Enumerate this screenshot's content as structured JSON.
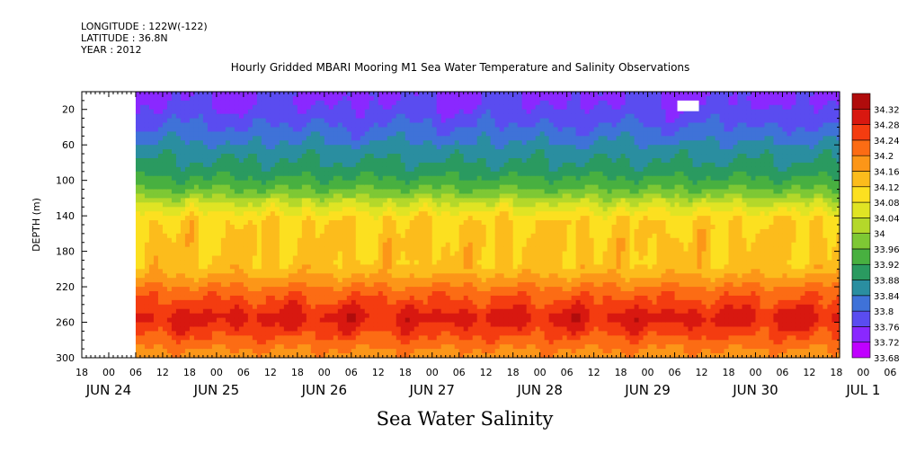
{
  "header": {
    "longitude": "LONGITUDE : 122W(-122)",
    "latitude": "LATITUDE : 36.8N",
    "year": "YEAR : 2012"
  },
  "chart_data": {
    "type": "heatmap",
    "title": "Hourly Gridded MBARI Mooring M1 Sea Water Temperature and Salinity Observations",
    "xlabel": "Sea Water Salinity",
    "ylabel": "DEPTH (m)",
    "ylim": [
      300,
      0
    ],
    "y_ticks": [
      20,
      60,
      100,
      140,
      180,
      220,
      260,
      300
    ],
    "x_hour_ticks": [
      "18",
      "00",
      "06",
      "12",
      "18",
      "00",
      "06",
      "12",
      "18",
      "00",
      "06",
      "12",
      "18",
      "00",
      "06",
      "12",
      "18",
      "00",
      "06",
      "12",
      "18",
      "00",
      "06",
      "12",
      "18",
      "00",
      "06",
      "12",
      "18",
      "00",
      "06",
      "12",
      "18"
    ],
    "x_date_labels": [
      "JUN 24",
      "JUN 25",
      "JUN 26",
      "JUN 27",
      "JUN 28",
      "JUN 29",
      "JUN 30",
      "JUL  1"
    ],
    "colorbar": {
      "levels": [
        33.68,
        33.72,
        33.76,
        33.8,
        33.84,
        33.88,
        33.92,
        33.96,
        34,
        34.04,
        34.08,
        34.12,
        34.16,
        34.2,
        34.24,
        34.28,
        34.32
      ],
      "colors": [
        "#c000ff",
        "#8a28ff",
        "#5a4cf0",
        "#3f72d8",
        "#2a8ea0",
        "#2a9a60",
        "#48b040",
        "#7ec834",
        "#b4d82a",
        "#e0e424",
        "#fce020",
        "#fcbc1c",
        "#fc9618",
        "#fc6c14",
        "#f43c10",
        "#d81810",
        "#b00c0c"
      ]
    },
    "data_start_day": 0.25,
    "missing_block": {
      "day": 5.375,
      "depth": [
        10,
        22
      ]
    },
    "profile": [
      {
        "depth": 10,
        "salinity": 33.76
      },
      {
        "depth": 30,
        "salinity": 33.79
      },
      {
        "depth": 60,
        "salinity": 33.85
      },
      {
        "depth": 90,
        "salinity": 33.9
      },
      {
        "depth": 110,
        "salinity": 33.96
      },
      {
        "depth": 130,
        "salinity": 34.05
      },
      {
        "depth": 145,
        "salinity": 34.11
      },
      {
        "depth": 170,
        "salinity": 34.12
      },
      {
        "depth": 195,
        "salinity": 34.12
      },
      {
        "depth": 210,
        "salinity": 34.17
      },
      {
        "depth": 225,
        "salinity": 34.22
      },
      {
        "depth": 245,
        "salinity": 34.27
      },
      {
        "depth": 255,
        "salinity": 34.3
      },
      {
        "depth": 270,
        "salinity": 34.26
      },
      {
        "depth": 290,
        "salinity": 34.2
      },
      {
        "depth": 300,
        "salinity": 34.18
      }
    ]
  }
}
